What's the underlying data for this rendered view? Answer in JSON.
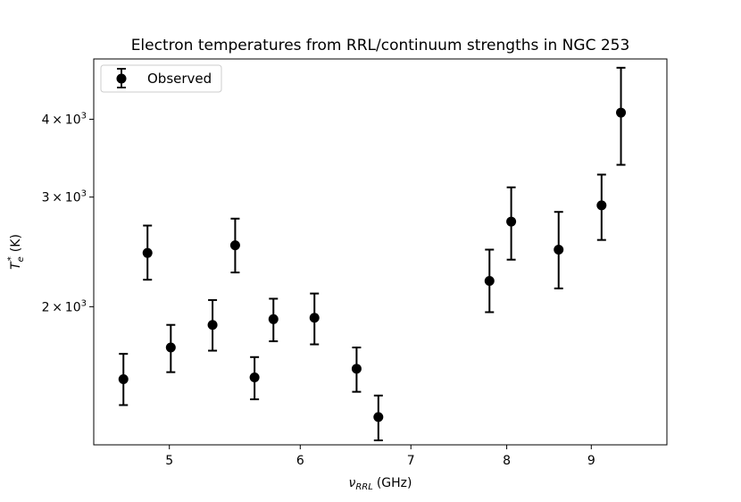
{
  "chart_data": {
    "type": "scatter",
    "title": "Electron temperatures from RRL/continuum strengths in NGC 253",
    "xlabel_symbol": "ν",
    "xlabel_subscript": "RRL",
    "xlabel_unit": "(GHz)",
    "ylabel_symbol": "T",
    "ylabel_subscript": "e",
    "ylabel_superscript": "*",
    "ylabel_unit": "(K)",
    "xscale": "log",
    "yscale": "log",
    "xlim": [
      4.5,
      10.0
    ],
    "ylim": [
      1200,
      5000
    ],
    "xticks": [
      5,
      6,
      7,
      8,
      9
    ],
    "xtick_labels": [
      "5",
      "6",
      "7",
      "8",
      "9"
    ],
    "yticks": [
      2000,
      3000,
      4000
    ],
    "ytick_labels": [
      {
        "mantissa": "2",
        "times": "×",
        "base": "10",
        "exp": "3"
      },
      {
        "mantissa": "3",
        "times": "×",
        "base": "10",
        "exp": "3"
      },
      {
        "mantissa": "4",
        "times": "×",
        "base": "10",
        "exp": "3"
      }
    ],
    "legend": {
      "location": "upper-left",
      "label": "Observed"
    },
    "series": [
      {
        "name": "Observed",
        "color": "#000000",
        "points": [
          {
            "x": 4.69,
            "y": 1530,
            "lo": 1390,
            "hi": 1680
          },
          {
            "x": 4.85,
            "y": 2440,
            "lo": 2210,
            "hi": 2700
          },
          {
            "x": 5.01,
            "y": 1720,
            "lo": 1570,
            "hi": 1870
          },
          {
            "x": 5.31,
            "y": 1870,
            "lo": 1700,
            "hi": 2050
          },
          {
            "x": 5.48,
            "y": 2510,
            "lo": 2270,
            "hi": 2770
          },
          {
            "x": 5.63,
            "y": 1540,
            "lo": 1420,
            "hi": 1660
          },
          {
            "x": 5.78,
            "y": 1910,
            "lo": 1760,
            "hi": 2060
          },
          {
            "x": 6.12,
            "y": 1920,
            "lo": 1740,
            "hi": 2100
          },
          {
            "x": 6.49,
            "y": 1590,
            "lo": 1460,
            "hi": 1720
          },
          {
            "x": 6.69,
            "y": 1330,
            "lo": 1220,
            "hi": 1440
          },
          {
            "x": 7.81,
            "y": 2200,
            "lo": 1960,
            "hi": 2470
          },
          {
            "x": 8.05,
            "y": 2740,
            "lo": 2380,
            "hi": 3110
          },
          {
            "x": 8.6,
            "y": 2470,
            "lo": 2140,
            "hi": 2840
          },
          {
            "x": 9.13,
            "y": 2910,
            "lo": 2560,
            "hi": 3260
          },
          {
            "x": 9.38,
            "y": 4100,
            "lo": 3380,
            "hi": 4840
          }
        ]
      }
    ]
  }
}
